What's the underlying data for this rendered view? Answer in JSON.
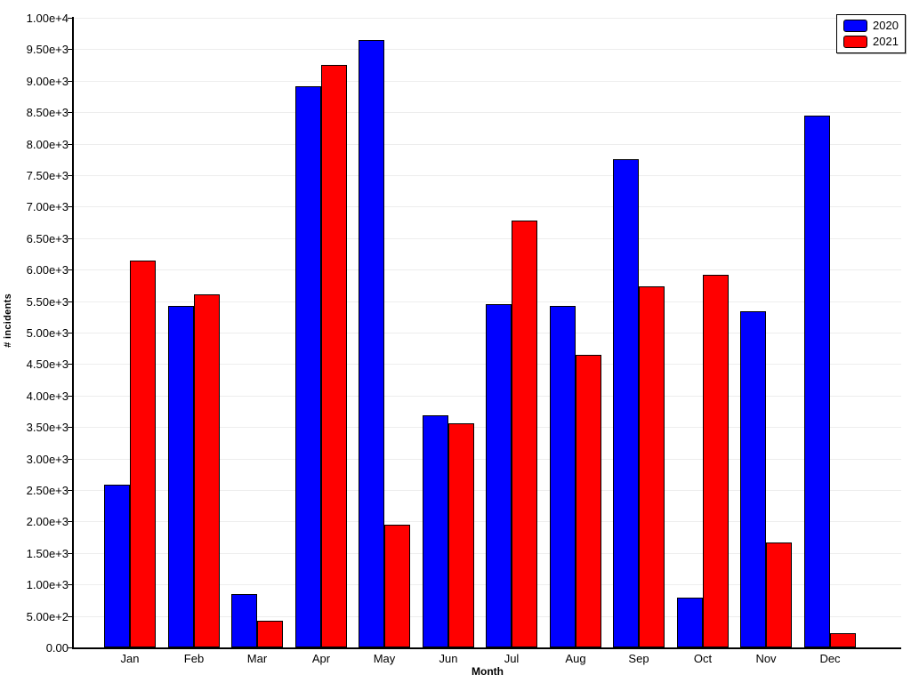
{
  "chart_data": {
    "type": "bar",
    "title": "",
    "xlabel": "Month",
    "ylabel": "# incidents",
    "categories": [
      "Jan",
      "Feb",
      "Mar",
      "Apr",
      "May",
      "Jun",
      "Jul",
      "Aug",
      "Sep",
      "Oct",
      "Nov",
      "Dec"
    ],
    "series": [
      {
        "name": "2020",
        "color": "#0000ff",
        "values": [
          2580,
          5430,
          850,
          8910,
          9640,
          3680,
          5450,
          5420,
          7760,
          790,
          5340,
          8450
        ]
      },
      {
        "name": "2021",
        "color": "#ff0000",
        "values": [
          6150,
          5610,
          430,
          9250,
          1950,
          3560,
          6780,
          4650,
          5740,
          5920,
          1660,
          220
        ]
      }
    ],
    "ylim": [
      0,
      10000
    ],
    "ytick_step": 500,
    "ytick_labels": [
      "0.00",
      "5.00e+2",
      "1.00e+3",
      "1.50e+3",
      "2.00e+3",
      "2.50e+3",
      "3.00e+3",
      "3.50e+3",
      "4.00e+3",
      "4.50e+3",
      "5.00e+3",
      "5.50e+3",
      "6.00e+3",
      "6.50e+3",
      "7.00e+3",
      "7.50e+3",
      "8.00e+3",
      "8.50e+3",
      "9.00e+3",
      "9.50e+3",
      "1.00e+4"
    ],
    "grid": true,
    "legend_position": "top-right",
    "bar_border_color": "#000000",
    "grid_color": "#ededed"
  }
}
